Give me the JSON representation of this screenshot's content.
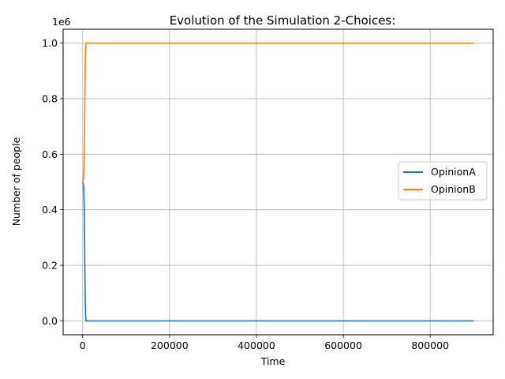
{
  "chart_data": {
    "type": "line",
    "title": "Evolution of the Simulation 2-Choices:",
    "xlabel": "Time",
    "ylabel": "Number of people",
    "y_offset_text": "1e6",
    "xlim": [
      -45000,
      945000
    ],
    "ylim": [
      -0.05,
      1.05
    ],
    "y_scale_factor": 1000000,
    "x_ticks": [
      0,
      200000,
      400000,
      600000,
      800000
    ],
    "x_tick_labels": [
      "0",
      "200000",
      "400000",
      "600000",
      "800000"
    ],
    "y_ticks": [
      0.0,
      0.2,
      0.4,
      0.6,
      0.8,
      1.0
    ],
    "y_tick_labels": [
      "0.0",
      "0.2",
      "0.4",
      "0.6",
      "0.8",
      "1.0"
    ],
    "grid": true,
    "legend_position": "center-right",
    "series": [
      {
        "name": "OpinionA",
        "color": "#1f77b4",
        "x": [
          0,
          2000,
          3000,
          4000,
          5000,
          6000,
          7000,
          8000,
          10000,
          15000,
          50000,
          900000
        ],
        "y": [
          0.5,
          0.49,
          0.45,
          0.38,
          0.2,
          0.06,
          0.01,
          0.0,
          0.0,
          0.0,
          0.0,
          0.0
        ]
      },
      {
        "name": "OpinionB",
        "color": "#ff7f0e",
        "x": [
          0,
          2000,
          3000,
          4000,
          5000,
          6000,
          7000,
          8000,
          10000,
          15000,
          50000,
          900000
        ],
        "y": [
          0.5,
          0.51,
          0.55,
          0.62,
          0.8,
          0.94,
          0.99,
          1.0,
          1.0,
          1.0,
          1.0,
          1.0
        ]
      }
    ]
  }
}
